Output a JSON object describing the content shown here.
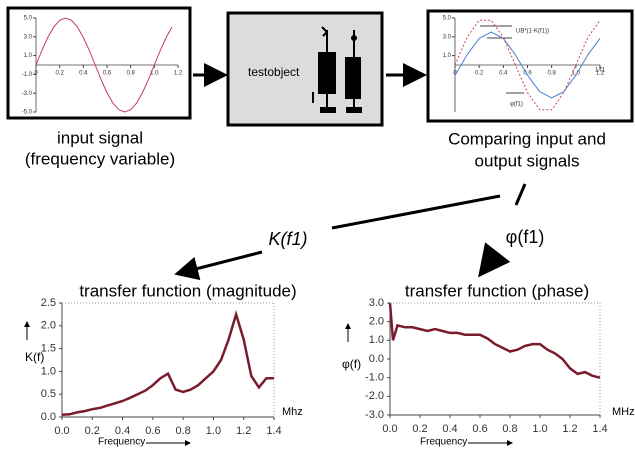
{
  "input_panel": {
    "caption": [
      "input signal",
      "(frequency variable)"
    ],
    "plot": {
      "x": [
        0,
        0.05,
        0.1,
        0.15,
        0.2,
        0.25,
        0.3,
        0.35,
        0.4,
        0.45,
        0.5,
        0.55,
        0.6,
        0.65,
        0.7,
        0.75,
        0.8,
        0.85,
        0.9,
        0.95,
        1.0,
        1.05,
        1.1,
        1.15
      ],
      "values": [
        0,
        1.55,
        2.94,
        4.05,
        4.76,
        5,
        4.76,
        4.05,
        2.94,
        1.55,
        0,
        -1.55,
        -2.94,
        -4.05,
        -4.76,
        -5,
        -4.76,
        -4.05,
        -2.94,
        -1.55,
        0,
        1.55,
        2.94,
        4.05
      ],
      "color": "#c0405a",
      "xlim": [
        0,
        1.2
      ],
      "ylim": [
        -5,
        5
      ],
      "xticks": [
        0,
        0.2,
        0.4,
        0.6,
        0.8,
        {
          "value": 1,
          "label": "1.0"
        },
        1.2
      ],
      "yticks": [
        {
          "value": 5,
          "label": "5.0"
        },
        {
          "value": 3,
          "label": "3.0"
        },
        {
          "value": 1,
          "label": "1.0"
        },
        {
          "value": -1,
          "label": "-1.0"
        },
        {
          "value": -3,
          "label": "-3.0"
        },
        {
          "value": -5,
          "label": "-5.0"
        }
      ]
    }
  },
  "test_panel": {
    "label": "testobject"
  },
  "output_panel": {
    "caption": [
      "Comparing input and",
      "output signals"
    ],
    "plot": {
      "x": [
        0,
        0.1,
        0.2,
        0.3,
        0.4,
        0.5,
        0.6,
        0.7,
        0.8,
        0.9,
        1.0,
        1.1,
        1.2
      ],
      "series": [
        {
          "values": [
            -1.08,
            1.08,
            2.83,
            3.5,
            2.83,
            1.08,
            -1.08,
            -2.83,
            -3.5,
            -2.83,
            -1.08,
            1.08,
            2.83
          ],
          "color": "#4a7fd0"
        },
        {
          "values": [
            0,
            2.94,
            4.76,
            4.76,
            2.94,
            0,
            -2.94,
            -4.76,
            -4.76,
            -2.94,
            0,
            2.94,
            4.76
          ],
          "color": "#d04060"
        }
      ],
      "xlim": [
        0,
        1.2
      ],
      "ylim": [
        -5,
        5
      ],
      "xticks": [
        0,
        0.2,
        0.4,
        0.6,
        0.8,
        {
          "value": 1,
          "label": "1.0"
        },
        1.2
      ],
      "yticks": [
        {
          "value": 5,
          "label": "5.0"
        },
        {
          "value": 3,
          "label": "3.0"
        },
        {
          "value": 1,
          "label": "1.0"
        }
      ],
      "annotations": [
        "UB*(1-K(f1))",
        "1/f1",
        "φ(f1)"
      ]
    }
  },
  "arrows": {
    "magnitude_label": "K(f1)",
    "phase_label": "φ(f1)"
  },
  "magnitude_chart": {
    "title": "transfer function (magnitude)",
    "y_label": "K(f)",
    "x_unit": "Mhz",
    "x_label": "Frequency",
    "x": [
      0,
      0.05,
      0.1,
      0.15,
      0.2,
      0.25,
      0.3,
      0.35,
      0.4,
      0.45,
      0.5,
      0.55,
      0.6,
      0.65,
      0.7,
      0.75,
      0.8,
      0.85,
      0.9,
      0.95,
      1.0,
      1.05,
      1.1,
      1.15,
      1.2,
      1.25,
      1.3,
      1.35,
      1.4
    ],
    "values": [
      0.05,
      0.06,
      0.1,
      0.13,
      0.17,
      0.2,
      0.25,
      0.3,
      0.35,
      0.42,
      0.5,
      0.58,
      0.7,
      0.85,
      0.95,
      0.6,
      0.55,
      0.6,
      0.7,
      0.85,
      1.0,
      1.25,
      1.7,
      2.25,
      1.7,
      0.9,
      0.65,
      0.85,
      0.85
    ],
    "color": "#7a1c2c",
    "xlim": [
      0,
      1.4
    ],
    "ylim": [
      0,
      2.5
    ],
    "xticks": [
      {
        "value": 0,
        "label": "0.0"
      },
      0.2,
      0.4,
      0.6,
      0.8,
      {
        "value": 1,
        "label": "1.0"
      },
      1.2,
      1.4
    ],
    "yticks": [
      {
        "value": 0,
        "label": "0.0"
      },
      0.5,
      {
        "value": 1,
        "label": "1.0"
      },
      1.5,
      {
        "value": 2,
        "label": "2.0"
      },
      2.5
    ]
  },
  "phase_chart": {
    "title": "transfer function (phase)",
    "y_label": "φ(f)",
    "x_unit": "MHz",
    "x_label": "Frequency",
    "x": [
      0,
      0.02,
      0.05,
      0.1,
      0.15,
      0.2,
      0.25,
      0.3,
      0.35,
      0.4,
      0.45,
      0.5,
      0.55,
      0.6,
      0.65,
      0.7,
      0.75,
      0.8,
      0.85,
      0.9,
      0.95,
      1.0,
      1.05,
      1.1,
      1.15,
      1.2,
      1.25,
      1.3,
      1.35,
      1.4
    ],
    "values": [
      3.0,
      1.0,
      1.8,
      1.7,
      1.7,
      1.6,
      1.5,
      1.6,
      1.5,
      1.4,
      1.4,
      1.3,
      1.3,
      1.3,
      1.1,
      0.8,
      0.6,
      0.4,
      0.5,
      0.7,
      0.8,
      0.8,
      0.5,
      0.3,
      0,
      -0.5,
      -0.8,
      -0.7,
      -0.9,
      -1.0
    ],
    "color": "#7a1c2c",
    "xlim": [
      0,
      1.4
    ],
    "ylim": [
      -3,
      3
    ],
    "xticks": [
      {
        "value": 0,
        "label": "0.0"
      },
      0.2,
      0.4,
      0.6,
      0.8,
      {
        "value": 1,
        "label": "1.0"
      },
      1.2,
      1.4
    ],
    "yticks": [
      {
        "value": 3,
        "label": "3.0"
      },
      {
        "value": 2,
        "label": "2.0"
      },
      {
        "value": 1,
        "label": "1.0"
      },
      {
        "value": 0,
        "label": "0.0"
      },
      {
        "value": -1,
        "label": "-1.0"
      },
      {
        "value": -2,
        "label": "-2.0"
      },
      {
        "value": -3,
        "label": "-3.0"
      }
    ]
  }
}
